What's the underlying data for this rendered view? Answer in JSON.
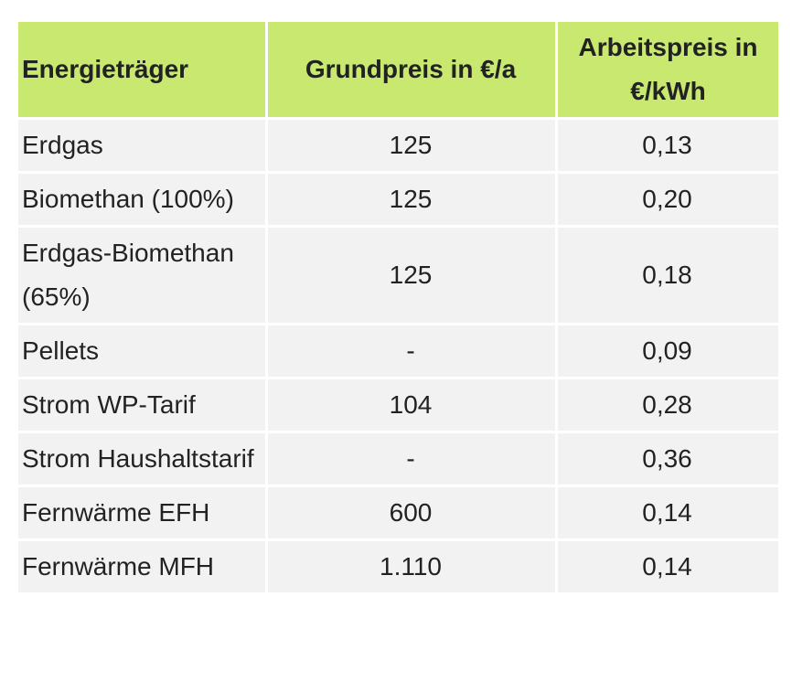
{
  "table": {
    "header": [
      "Energieträger",
      "Grundpreis in €/a",
      "Arbeitspreis in €/kWh"
    ],
    "rows": [
      [
        "Erdgas",
        "125",
        "0,13"
      ],
      [
        "Biomethan (100%)",
        "125",
        "0,20"
      ],
      [
        "Erdgas-Biomethan (65%)",
        "125",
        "0,18"
      ],
      [
        "Pellets",
        "-",
        "0,09"
      ],
      [
        "Strom WP-Tarif",
        "104",
        "0,28"
      ],
      [
        "Strom Haushaltstarif",
        "-",
        "0,36"
      ],
      [
        "Fernwärme EFH",
        "600",
        "0,14"
      ],
      [
        "Fernwärme MFH",
        "1.110",
        "0,14"
      ]
    ]
  }
}
